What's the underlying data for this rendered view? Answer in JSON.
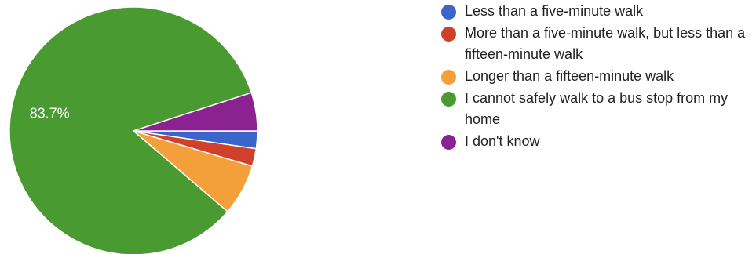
{
  "chart_data": {
    "type": "pie",
    "title": "",
    "slices": [
      {
        "label": "Less than a five-minute walk",
        "value": 2.3,
        "color": "#3a66cc"
      },
      {
        "label": "More than a five-minute walk, but less than a fifteen-minute walk",
        "value": 2.3,
        "color": "#d1402a"
      },
      {
        "label": "Longer than a fifteen-minute walk",
        "value": 6.7,
        "color": "#f3a03b"
      },
      {
        "label": "I cannot safely walk to a bus stop from my home",
        "value": 83.7,
        "color": "#4a9a32"
      },
      {
        "label": "I don't know",
        "value": 5.0,
        "color": "#8a2292"
      }
    ],
    "data_labels": [
      {
        "slice": 3,
        "text": "83.7%"
      }
    ],
    "legend_position": "right"
  }
}
